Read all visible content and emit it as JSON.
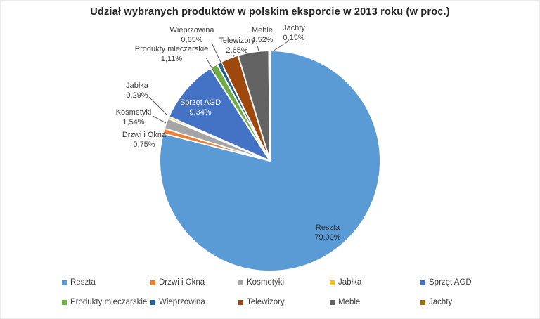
{
  "title": "Udział wybranych produktów w polskim eksporcie w 2013 roku (w proc.)",
  "chart_data": {
    "type": "pie",
    "title": "Udział wybranych produktów w polskim eksporcie w 2013 roku (w proc.)",
    "unit": "%",
    "start_angle_deg": 0,
    "direction": "clockwise",
    "legend_position": "bottom",
    "slice_border_color": "#FFFFFF",
    "slices": [
      {
        "name": "Reszta",
        "value": 79.0,
        "pct_label": "79,00%",
        "color": "#5B9BD5",
        "label_placement": "inside"
      },
      {
        "name": "Drzwi i Okna",
        "value": 0.75,
        "pct_label": "0,75%",
        "color": "#ED7D31",
        "label_placement": "outside"
      },
      {
        "name": "Kosmetyki",
        "value": 1.54,
        "pct_label": "1,54%",
        "color": "#A5A5A5",
        "label_placement": "outside"
      },
      {
        "name": "Jabłka",
        "value": 0.29,
        "pct_label": "0,29%",
        "color": "#FFC000",
        "label_placement": "outside"
      },
      {
        "name": "Sprzęt AGD",
        "value": 9.34,
        "pct_label": "9,34%",
        "color": "#4472C4",
        "label_placement": "inside"
      },
      {
        "name": "Produkty mleczarskie",
        "value": 1.11,
        "pct_label": "1,11%",
        "color": "#70AD47",
        "label_placement": "outside"
      },
      {
        "name": "Wieprzowina",
        "value": 0.65,
        "pct_label": "0,65%",
        "color": "#255E91",
        "label_placement": "outside"
      },
      {
        "name": "Telewizory",
        "value": 2.65,
        "pct_label": "2,65%",
        "color": "#9E480E",
        "label_placement": "outside"
      },
      {
        "name": "Meble",
        "value": 4.52,
        "pct_label": "4,52%",
        "color": "#636363",
        "label_placement": "outside"
      },
      {
        "name": "Jachty",
        "value": 0.15,
        "pct_label": "0,15%",
        "color": "#997300",
        "label_placement": "outside"
      }
    ]
  }
}
